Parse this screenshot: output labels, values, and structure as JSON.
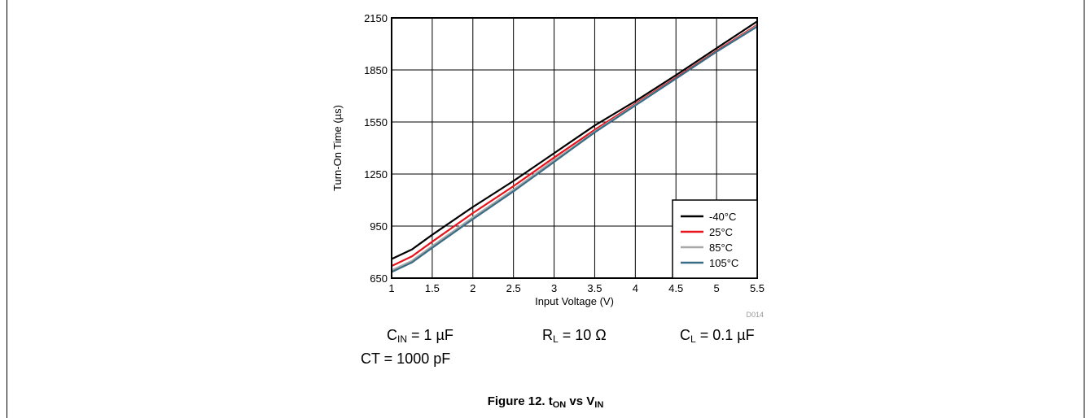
{
  "chart_data": {
    "type": "line",
    "xlabel": "Input Voltage (V)",
    "ylabel": "Turn-On Time (µs)",
    "xlim": [
      1,
      5.5
    ],
    "ylim": [
      650,
      2150
    ],
    "xticks": [
      "1",
      "1.5",
      "2",
      "2.5",
      "3",
      "3.5",
      "4",
      "4.5",
      "5",
      "5.5"
    ],
    "yticks": [
      "650",
      "950",
      "1250",
      "1550",
      "1850",
      "2150"
    ],
    "grid": true,
    "legend_position": "bottom-right",
    "figure_code": "D014",
    "series": [
      {
        "name": "-40°C",
        "color": "#000000",
        "x": [
          1,
          1.25,
          1.5,
          2,
          2.5,
          3,
          3.25,
          3.5,
          4,
          4.5,
          5,
          5.5
        ],
        "y": [
          760,
          815,
          900,
          1060,
          1210,
          1370,
          1450,
          1530,
          1670,
          1820,
          1975,
          2130
        ]
      },
      {
        "name": "25°C",
        "color": "#e8141b",
        "x": [
          1,
          1.25,
          1.5,
          2,
          2.5,
          3,
          3.25,
          3.5,
          4,
          4.5,
          5,
          5.5
        ],
        "y": [
          720,
          775,
          860,
          1025,
          1180,
          1345,
          1425,
          1505,
          1655,
          1805,
          1960,
          2110
        ]
      },
      {
        "name": "85°C",
        "color": "#a8a8a8",
        "x": [
          1,
          1.25,
          1.5,
          2,
          2.5,
          3,
          3.25,
          3.5,
          4,
          4.5,
          5,
          5.5
        ],
        "y": [
          695,
          750,
          835,
          1000,
          1160,
          1330,
          1410,
          1495,
          1650,
          1800,
          1955,
          2105
        ]
      },
      {
        "name": "105°C",
        "color": "#3a6d86",
        "x": [
          1,
          1.25,
          1.5,
          2,
          2.5,
          3,
          3.25,
          3.5,
          4,
          4.5,
          5,
          5.5
        ],
        "y": [
          685,
          740,
          825,
          990,
          1150,
          1320,
          1405,
          1490,
          1645,
          1800,
          1955,
          2100
        ]
      }
    ]
  },
  "conditions": {
    "cin": {
      "symbol": "C",
      "sub": "IN",
      "value": " = 1 µF"
    },
    "rl": {
      "symbol": "R",
      "sub": "L",
      "value": " = 10 Ω"
    },
    "cl": {
      "symbol": "C",
      "sub": "L",
      "value": " = 0.1 µF"
    },
    "ct": "CT = 1000 pF"
  },
  "caption": {
    "prefix": "Figure 12. t",
    "sub1": "ON",
    "mid": " vs V",
    "sub2": "IN"
  }
}
